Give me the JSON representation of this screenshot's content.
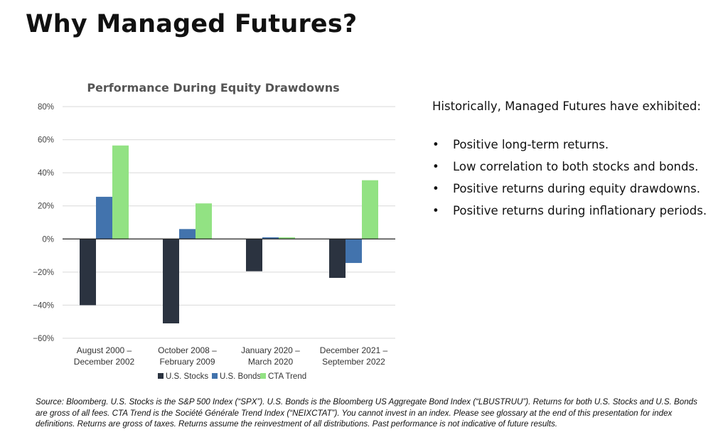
{
  "page": {
    "title": "Why Managed Futures?",
    "intro": "Historically, Managed Futures have exhibited:",
    "bullet_glyph": "•",
    "bullets": [
      "Positive long-term returns.",
      "Low correlation to both stocks and bonds.",
      "Positive returns during equity drawdowns.",
      "Positive returns during inflationary periods."
    ],
    "source": "Source: Bloomberg.  U.S. Stocks is the S&P 500 Index (“SPX”).  U.S. Bonds is the Bloomberg US Aggregate Bond Index (“LBUSTRUU”).  Returns for both U.S. Stocks and U.S. Bonds are gross of all fees.  CTA Trend is the Société Générale Trend Index (“NEIXCTAT”).  You cannot invest in an index.  Please see glossary at the end of this presentation for index definitions.  Returns are gross of taxes.  Returns assume the reinvestment of all distributions.  Past performance is not indicative of future results."
  },
  "chart_data": {
    "type": "bar",
    "title": "Performance During Equity Drawdowns",
    "xlabel": "",
    "ylabel": "",
    "ylim": [
      -60,
      80
    ],
    "yticks": [
      80,
      60,
      40,
      20,
      0,
      -20,
      -40,
      -60
    ],
    "ytick_labels": [
      "80%",
      "60%",
      "40%",
      "20%",
      "0%",
      "−20%",
      "−40%",
      "−60%"
    ],
    "grid": true,
    "legend": "bottom",
    "categories": [
      [
        "August 2000 –",
        "December 2002"
      ],
      [
        "October 2008 –",
        "February 2009"
      ],
      [
        "January 2020 –",
        "March 2020"
      ],
      [
        "December 2021 –",
        "September 2022"
      ]
    ],
    "series": [
      {
        "name": "U.S. Stocks",
        "color": "#2b3340",
        "values": [
          -40,
          -51,
          -19.5,
          -23.5
        ]
      },
      {
        "name": "U.S. Bonds",
        "color": "#4273ad",
        "values": [
          25.5,
          6,
          1,
          -14.5
        ]
      },
      {
        "name": "CTA Trend",
        "color": "#92e283",
        "values": [
          56.5,
          21.5,
          1,
          35.5
        ]
      }
    ]
  }
}
